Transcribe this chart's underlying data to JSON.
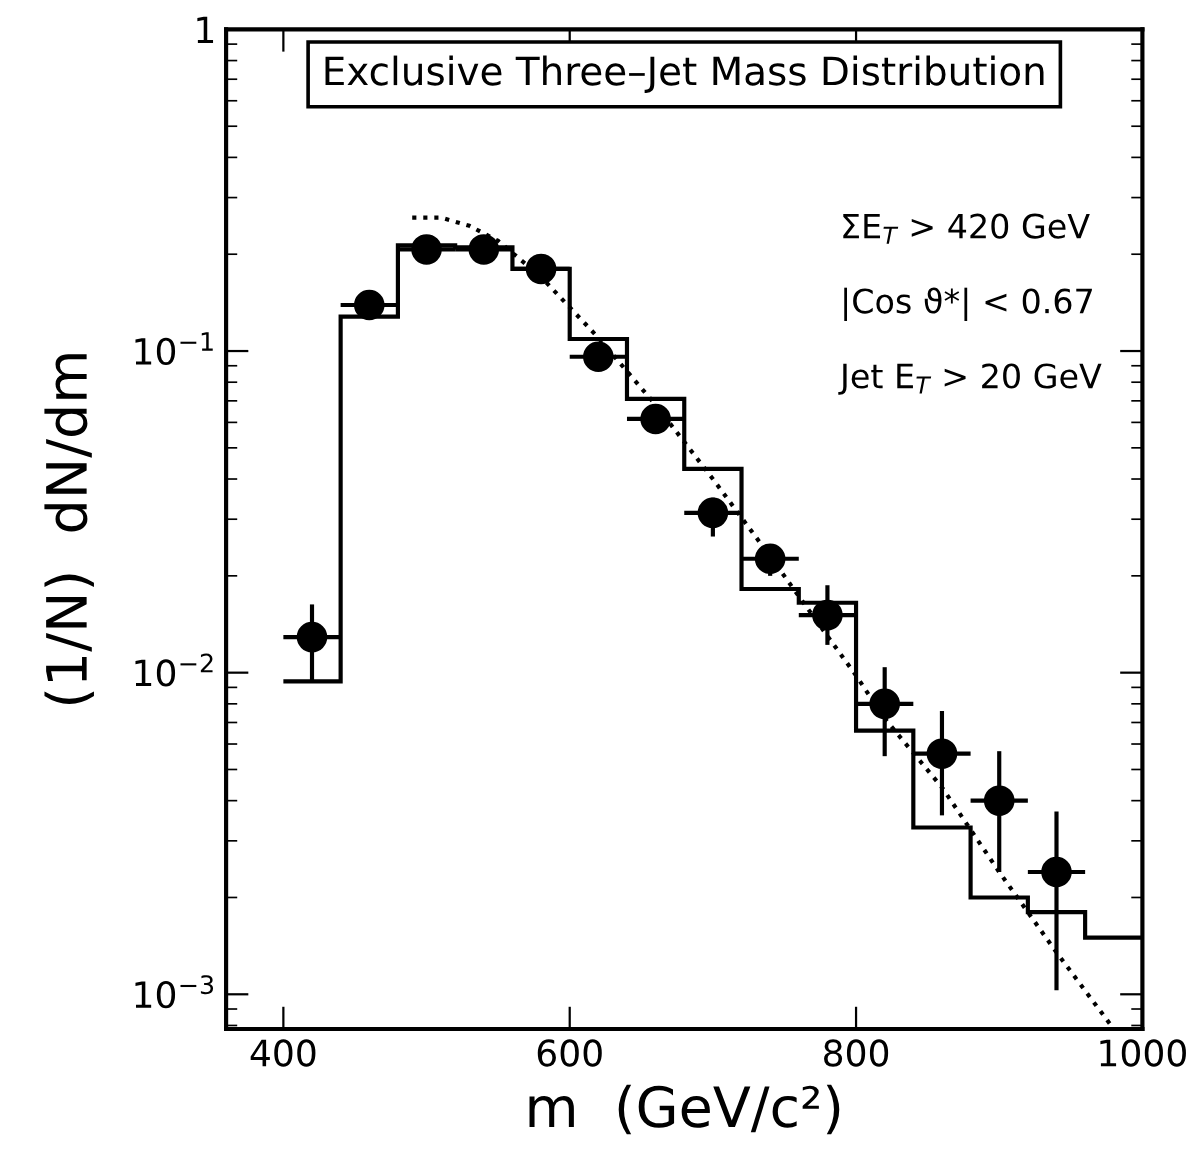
{
  "chart_data": {
    "type": "histogram",
    "title": "Exclusive Three–Jet Mass Distribution",
    "xlabel": "m  (GeV/c²)",
    "ylabel": "(1/N)  dN/dm",
    "bins": [
      400,
      440,
      480,
      520,
      560,
      600,
      640,
      680,
      720,
      760,
      800,
      840,
      880,
      920,
      960,
      1000
    ],
    "values": [
      0.0094,
      0.128,
      0.213,
      0.21,
      0.18,
      0.109,
      0.071,
      0.043,
      0.0182,
      0.0165,
      0.0066,
      0.0033,
      0.002,
      0.0018,
      0.0015
    ],
    "color": "#000000",
    "series": [
      {
        "type": "scatter",
        "color": "#000000",
        "marker": "circle",
        "x": [
          420,
          460,
          500,
          540,
          580,
          620,
          660,
          700,
          740,
          780,
          820,
          860,
          900,
          940
        ],
        "values": [
          0.0129,
          0.139,
          0.207,
          0.207,
          0.18,
          0.096,
          0.0615,
          0.0314,
          0.0226,
          0.0151,
          0.008,
          0.0056,
          0.004,
          0.0024
        ],
        "errors": [
          [
            0.0094,
            0.0163
          ],
          null,
          null,
          null,
          null,
          null,
          null,
          [
            0.0265,
            0.035
          ],
          [
            0.02,
            0.025
          ],
          [
            0.0122,
            0.0187
          ],
          [
            0.0055,
            0.0104
          ],
          [
            0.0036,
            0.0076
          ],
          [
            0.0024,
            0.0057
          ],
          [
            0.00103,
            0.0037
          ]
        ],
        "xerrors": [
          20,
          20,
          20,
          20,
          20,
          20,
          20,
          20,
          20,
          20,
          20,
          20,
          20,
          20
        ]
      },
      {
        "type": "line",
        "color": "#000000",
        "line_style": "dotted",
        "x": [
          490,
          510,
          530,
          550,
          580,
          620,
          660,
          700,
          740,
          780,
          800,
          820,
          860,
          900,
          940,
          980
        ],
        "values": [
          0.26,
          0.26,
          0.245,
          0.22,
          0.17,
          0.11,
          0.068,
          0.04,
          0.023,
          0.013,
          0.0098,
          0.0072,
          0.0044,
          0.0024,
          0.00135,
          0.00078
        ]
      }
    ],
    "annotations": [
      "ΣE$_{T}$ > 420 GeV",
      "|Cos ϑ*| < 0.67",
      "Jet E$_{T}$ > 20 GeV"
    ],
    "log": "y",
    "grid": false,
    "legend": false,
    "xlim": [
      360,
      1000
    ],
    "xticks": [
      400,
      600,
      800,
      1000
    ],
    "ylim": [
      0.00078,
      1
    ],
    "yticks": [
      {
        "value": 0.001,
        "label": "10$^{−3}$"
      },
      {
        "value": 0.01,
        "label": "10$^{−2}$"
      },
      {
        "value": 0.1,
        "label": "10$^{−1}$"
      },
      1
    ]
  }
}
